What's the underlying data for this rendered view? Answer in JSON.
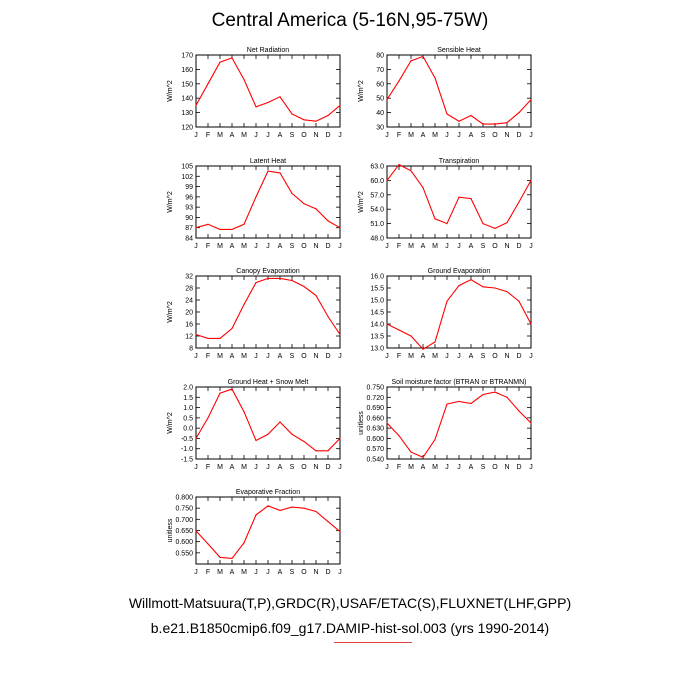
{
  "title": "Central America (5-16N,95-75W)",
  "captions": {
    "line1": "Willmott-Matsuura(T,P),GRDC(R),USAF/ETAC(S),FLUXNET(LHF,GPP)",
    "line2": "b.e21.B1850cmip6.f09_g17.DAMIP-hist-sol.003 (yrs 1990-2014)"
  },
  "colors": {
    "series": "#ff0000",
    "axis": "#000000"
  },
  "chart_data": [
    {
      "type": "line",
      "title": "Net Radiation",
      "ylabel": "W/m^2",
      "x": [
        "J",
        "F",
        "M",
        "A",
        "M",
        "J",
        "J",
        "A",
        "S",
        "O",
        "N",
        "D",
        "J"
      ],
      "values": [
        135,
        150,
        165,
        168,
        153,
        134,
        137,
        141,
        129,
        125,
        124,
        128,
        135
      ],
      "ylim": [
        120,
        170
      ],
      "yticks": [
        120,
        130,
        140,
        150,
        160,
        170
      ],
      "ytick_labels": [
        "120",
        "130",
        "140",
        "150",
        "160",
        "170"
      ]
    },
    {
      "type": "line",
      "title": "Sensible Heat",
      "ylabel": "W/m^2",
      "x": [
        "J",
        "F",
        "M",
        "A",
        "M",
        "J",
        "J",
        "A",
        "S",
        "O",
        "N",
        "D",
        "J"
      ],
      "values": [
        49,
        62,
        76,
        79,
        64,
        39,
        34,
        38,
        32,
        32,
        33,
        40,
        49
      ],
      "ylim": [
        30,
        80
      ],
      "yticks": [
        30,
        40,
        50,
        60,
        70,
        80
      ],
      "ytick_labels": [
        "30",
        "40",
        "50",
        "60",
        "70",
        "80"
      ]
    },
    {
      "type": "line",
      "title": "Latent Heat",
      "ylabel": "W/m^2",
      "x": [
        "J",
        "F",
        "M",
        "A",
        "M",
        "J",
        "J",
        "A",
        "S",
        "O",
        "N",
        "D",
        "J"
      ],
      "values": [
        87,
        88,
        86.5,
        86.5,
        88,
        96,
        103.5,
        103,
        97,
        94,
        92.5,
        89,
        87
      ],
      "ylim": [
        84,
        105
      ],
      "yticks": [
        84,
        87,
        90,
        93,
        96,
        99,
        102,
        105
      ],
      "ytick_labels": [
        "84",
        "87",
        "90",
        "93",
        "96",
        "99",
        "102",
        "105"
      ]
    },
    {
      "type": "line",
      "title": "Transpiration",
      "ylabel": "W/m^2",
      "x": [
        "J",
        "F",
        "M",
        "A",
        "M",
        "J",
        "J",
        "A",
        "S",
        "O",
        "N",
        "D",
        "J"
      ],
      "values": [
        60,
        63.3,
        62,
        58.5,
        52,
        51,
        56.5,
        56.2,
        51,
        50,
        51.2,
        55.5,
        60
      ],
      "ylim": [
        48,
        63
      ],
      "yticks": [
        48,
        51,
        54,
        57,
        60,
        63
      ],
      "ytick_labels": [
        "48.0",
        "51.0",
        "54.0",
        "57.0",
        "60.0",
        "63.0"
      ]
    },
    {
      "type": "line",
      "title": "Canopy Evaporation",
      "ylabel": "W/m^2",
      "x": [
        "J",
        "F",
        "M",
        "A",
        "M",
        "J",
        "J",
        "A",
        "S",
        "O",
        "N",
        "D",
        "J"
      ],
      "values": [
        12.5,
        11.2,
        11.2,
        14.5,
        22.5,
        29.8,
        31.2,
        31.2,
        30.5,
        28.5,
        25.5,
        18.5,
        12.5
      ],
      "ylim": [
        8,
        32
      ],
      "yticks": [
        8,
        12,
        16,
        20,
        24,
        28,
        32
      ],
      "ytick_labels": [
        "8",
        "12",
        "16",
        "20",
        "24",
        "28",
        "32"
      ]
    },
    {
      "type": "line",
      "title": "Ground Evaporation",
      "ylabel": "",
      "x": [
        "J",
        "F",
        "M",
        "A",
        "M",
        "J",
        "J",
        "A",
        "S",
        "O",
        "N",
        "D",
        "J"
      ],
      "values": [
        14.0,
        13.75,
        13.5,
        12.95,
        13.25,
        14.95,
        15.6,
        15.85,
        15.55,
        15.5,
        15.35,
        14.95,
        14.0
      ],
      "ylim": [
        13,
        16
      ],
      "yticks": [
        13.0,
        13.5,
        14.0,
        14.5,
        15.0,
        15.5,
        16.0
      ],
      "ytick_labels": [
        "13.0",
        "13.5",
        "14.0",
        "14.5",
        "15.0",
        "15.5",
        "16.0"
      ]
    },
    {
      "type": "line",
      "title": "Ground Heat + Snow Melt",
      "ylabel": "W/m^2",
      "x": [
        "J",
        "F",
        "M",
        "A",
        "M",
        "J",
        "J",
        "A",
        "S",
        "O",
        "N",
        "D",
        "J"
      ],
      "values": [
        -0.5,
        0.5,
        1.7,
        1.9,
        0.8,
        -0.6,
        -0.3,
        0.3,
        -0.3,
        -0.65,
        -1.1,
        -1.1,
        -0.5
      ],
      "ylim": [
        -1.5,
        2.0
      ],
      "yticks": [
        -1.5,
        -1.0,
        -0.5,
        0.0,
        0.5,
        1.0,
        1.5,
        2.0
      ],
      "ytick_labels": [
        "-1.5",
        "-1.0",
        "-0.5",
        "0.0",
        "0.5",
        "1.0",
        "1.5",
        "2.0"
      ]
    },
    {
      "type": "line",
      "title": "Soil moisture factor (BTRAN or BTRANMN)",
      "ylabel": "unitless",
      "x": [
        "J",
        "F",
        "M",
        "A",
        "M",
        "J",
        "J",
        "A",
        "S",
        "O",
        "N",
        "D",
        "J"
      ],
      "values": [
        0.645,
        0.608,
        0.56,
        0.545,
        0.597,
        0.7,
        0.708,
        0.702,
        0.728,
        0.735,
        0.72,
        0.68,
        0.645
      ],
      "ylim": [
        0.54,
        0.75
      ],
      "yticks": [
        0.54,
        0.57,
        0.6,
        0.63,
        0.66,
        0.69,
        0.72,
        0.75
      ],
      "ytick_labels": [
        "0.540",
        "0.570",
        "0.600",
        "0.630",
        "0.660",
        "0.690",
        "0.720",
        "0.750"
      ]
    },
    {
      "type": "line",
      "title": "Evaporative Fraction",
      "ylabel": "unitless",
      "x": [
        "J",
        "F",
        "M",
        "A",
        "M",
        "J",
        "J",
        "A",
        "S",
        "O",
        "N",
        "D",
        "J"
      ],
      "values": [
        0.648,
        0.59,
        0.53,
        0.525,
        0.595,
        0.72,
        0.76,
        0.74,
        0.755,
        0.75,
        0.735,
        0.69,
        0.645
      ],
      "ylim": [
        0.5,
        0.8
      ],
      "yticks": [
        0.55,
        0.6,
        0.65,
        0.7,
        0.75,
        0.8
      ],
      "ytick_labels": [
        "0.550",
        "0.600",
        "0.650",
        "0.700",
        "0.750",
        "0.800"
      ]
    }
  ]
}
